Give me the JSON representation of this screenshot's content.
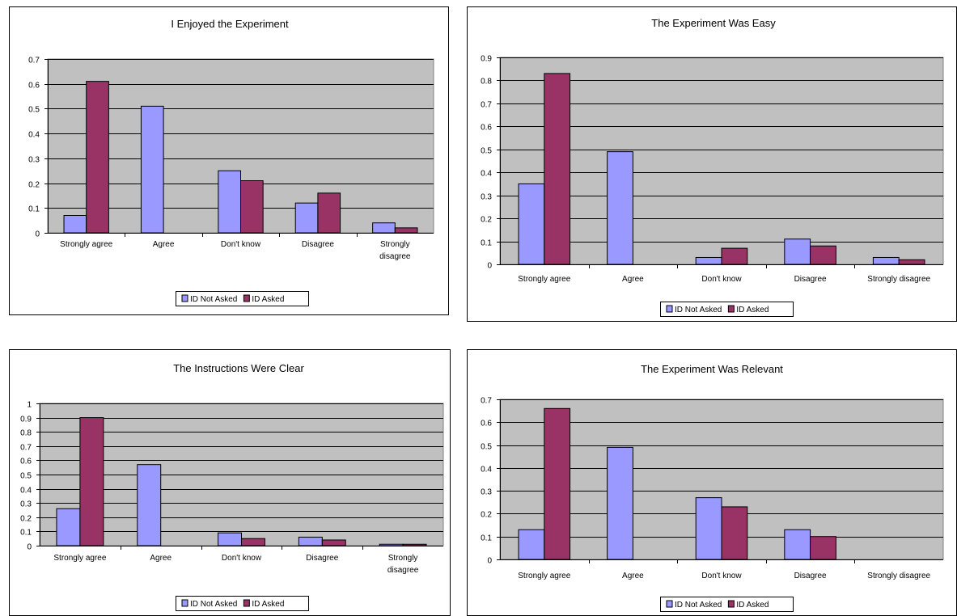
{
  "colors": {
    "id_not_asked": "#9999ff",
    "id_asked": "#993366",
    "plot_bg": "#c0c0c0",
    "frame": "#000000"
  },
  "chart_data": [
    {
      "type": "bar",
      "title": "I Enjoyed the  Experiment",
      "categories": [
        "Strongly agree",
        "Agree",
        "Don't know",
        "Disagree",
        "Strongly disagree"
      ],
      "series": [
        {
          "name": "ID Not Asked",
          "values": [
            0.07,
            0.51,
            0.25,
            0.12,
            0.04
          ]
        },
        {
          "name": "ID Asked",
          "values": [
            0.61,
            0,
            0.21,
            0.16,
            0.02
          ]
        }
      ],
      "ylim": [
        0,
        0.7
      ],
      "yticks": [
        "0",
        "0.1",
        "0.2",
        "0.3",
        "0.4",
        "0.5",
        "0.6",
        "0.7"
      ],
      "grid": true,
      "legend": "bottom"
    },
    {
      "type": "bar",
      "title": "The Experiment Was Easy",
      "categories": [
        "Strongly agree",
        "Agree",
        "Don't know",
        "Disagree",
        "Strongly disagree"
      ],
      "series": [
        {
          "name": "ID Not Asked",
          "values": [
            0.35,
            0.49,
            0.03,
            0.11,
            0.03
          ]
        },
        {
          "name": "ID Asked",
          "values": [
            0.83,
            0,
            0.07,
            0.08,
            0.02
          ]
        }
      ],
      "ylim": [
        0,
        0.9
      ],
      "yticks": [
        "0",
        "0.1",
        "0.2",
        "0.3",
        "0.4",
        "0.5",
        "0.6",
        "0.7",
        "0.8",
        "0.9"
      ],
      "grid": true,
      "legend": "bottom"
    },
    {
      "type": "bar",
      "title": "The Instructions Were Clear",
      "categories": [
        "Strongly agree",
        "Agree",
        "Don't know",
        "Disagree",
        "Strongly disagree"
      ],
      "series": [
        {
          "name": "ID Not Asked",
          "values": [
            0.26,
            0.57,
            0.09,
            0.06,
            0.01
          ]
        },
        {
          "name": "ID Asked",
          "values": [
            0.9,
            0,
            0.05,
            0.04,
            0.01
          ]
        }
      ],
      "ylim": [
        0,
        1
      ],
      "yticks": [
        "0",
        "0.1",
        "0.2",
        "0.3",
        "0.4",
        "0.5",
        "0.6",
        "0.7",
        "0.8",
        "0.9",
        "1"
      ],
      "grid": true,
      "legend": "bottom"
    },
    {
      "type": "bar",
      "title": "The Experiment Was Relevant",
      "categories": [
        "Strongly agree",
        "Agree",
        "Don't know",
        "Disagree",
        "Strongly disagree"
      ],
      "series": [
        {
          "name": "ID Not Asked",
          "values": [
            0.13,
            0.49,
            0.27,
            0.13,
            0
          ]
        },
        {
          "name": "ID Asked",
          "values": [
            0.66,
            0,
            0.23,
            0.1,
            0
          ]
        }
      ],
      "ylim": [
        0,
        0.7
      ],
      "yticks": [
        "0",
        "0.1",
        "0.2",
        "0.3",
        "0.4",
        "0.5",
        "0.6",
        "0.7"
      ],
      "grid": true,
      "legend": "bottom"
    }
  ]
}
